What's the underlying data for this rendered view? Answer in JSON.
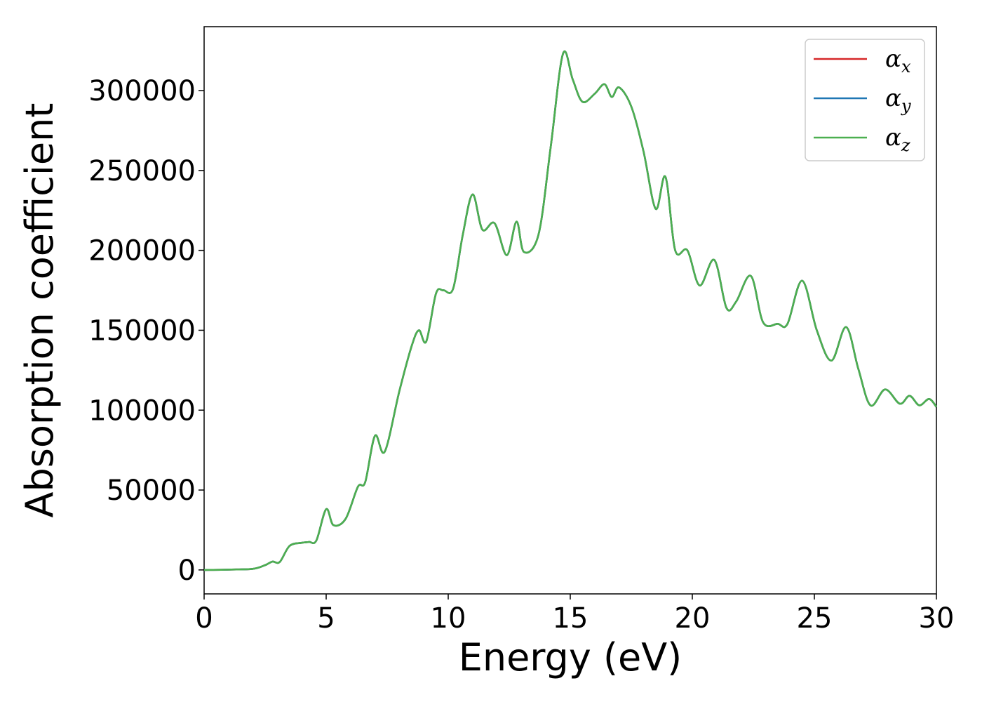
{
  "chart_data": {
    "type": "line",
    "xlabel": "Energy (eV)",
    "ylabel": "Absorption coefficient",
    "xlim": [
      0,
      30
    ],
    "ylim": [
      -15000,
      340000
    ],
    "x_ticks": [
      "0",
      "5",
      "10",
      "15",
      "20",
      "25",
      "30"
    ],
    "y_ticks": [
      "0",
      "50000",
      "100000",
      "150000",
      "200000",
      "250000",
      "300000"
    ],
    "grid": false,
    "legend_position": "top-right",
    "series": [
      {
        "name": "α",
        "sub": "x",
        "color": "#d62728"
      },
      {
        "name": "α",
        "sub": "y",
        "color": "#1f77b4"
      },
      {
        "name": "α",
        "sub": "z",
        "color": "#4caf50"
      }
    ],
    "x": [
      0,
      1,
      2,
      2.5,
      2.8,
      3.1,
      3.5,
      4.0,
      4.3,
      4.6,
      5.0,
      5.3,
      5.8,
      6.3,
      6.6,
      7.0,
      7.4,
      8.0,
      8.5,
      8.8,
      9.1,
      9.5,
      9.8,
      10.2,
      10.6,
      11.0,
      11.4,
      11.9,
      12.4,
      12.8,
      13.1,
      13.7,
      14.2,
      14.7,
      15.1,
      15.5,
      16.0,
      16.4,
      16.7,
      17.0,
      17.5,
      18.0,
      18.5,
      18.9,
      19.3,
      19.8,
      20.3,
      20.9,
      21.4,
      21.8,
      22.4,
      22.9,
      23.5,
      23.9,
      24.5,
      25.1,
      25.7,
      26.3,
      26.8,
      27.3,
      27.9,
      28.5,
      28.9,
      29.3,
      29.7,
      30.0
    ],
    "values": [
      0,
      200,
      700,
      3000,
      5200,
      5000,
      15000,
      17000,
      17500,
      18500,
      38000,
      28000,
      32000,
      52000,
      55000,
      84000,
      74000,
      112000,
      140000,
      150000,
      143000,
      173000,
      175000,
      176000,
      210000,
      235000,
      213000,
      217000,
      197000,
      218000,
      199000,
      210000,
      265000,
      323000,
      307000,
      293000,
      298000,
      304000,
      296000,
      302000,
      290000,
      262000,
      226000,
      246000,
      200000,
      200000,
      178000,
      194000,
      164000,
      168000,
      184000,
      155000,
      154000,
      154000,
      181000,
      150000,
      131000,
      152000,
      126000,
      103000,
      113000,
      104000,
      109000,
      103000,
      107000,
      102000
    ]
  }
}
